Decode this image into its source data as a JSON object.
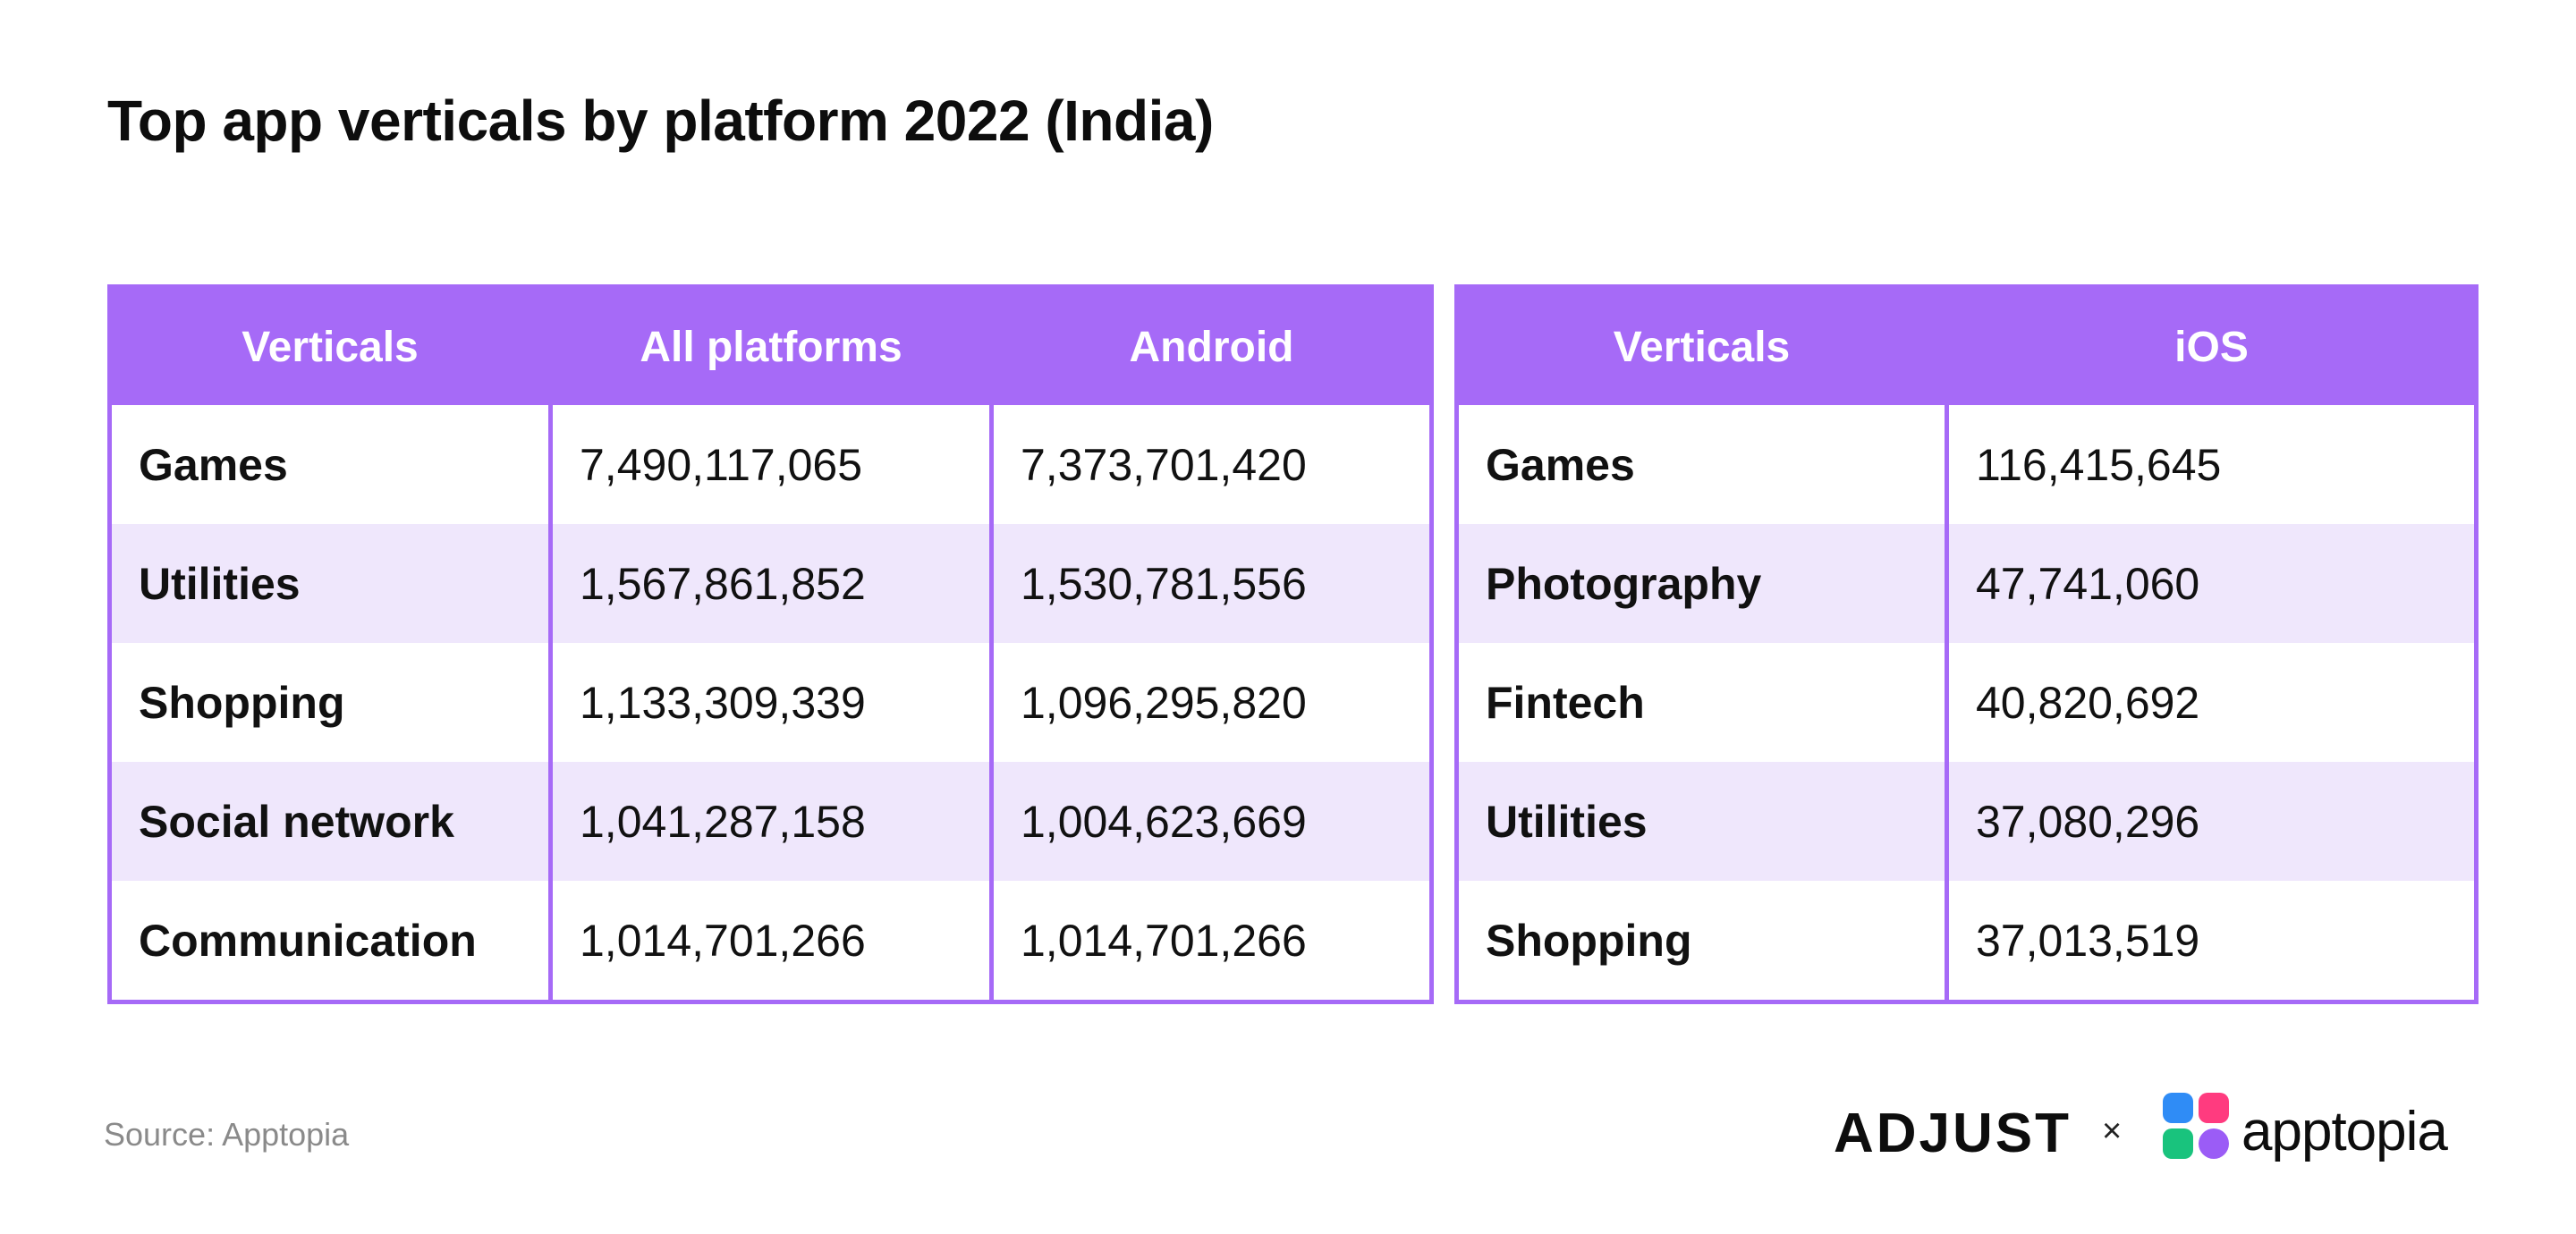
{
  "title": "Top app verticals by platform 2022 (India)",
  "source": "Source: Apptopia",
  "logos": {
    "adjust": "ADJUST",
    "separator": "×",
    "apptopia": "apptopia"
  },
  "colors": {
    "header_bg": "#a66af7",
    "row_alt_bg": "#efe7fc",
    "text": "#111111"
  },
  "chart_data": [
    {
      "type": "table",
      "columns": [
        "Verticals",
        "All platforms",
        "Android"
      ],
      "rows": [
        [
          "Games",
          "7,490,117,065",
          "7,373,701,420"
        ],
        [
          "Utilities",
          "1,567,861,852",
          "1,530,781,556"
        ],
        [
          "Shopping",
          "1,133,309,339",
          "1,096,295,820"
        ],
        [
          "Social network",
          "1,041,287,158",
          "1,004,623,669"
        ],
        [
          "Communication",
          "1,014,701,266",
          "1,014,701,266"
        ]
      ]
    },
    {
      "type": "table",
      "columns": [
        "Verticals",
        "iOS"
      ],
      "rows": [
        [
          "Games",
          "116,415,645"
        ],
        [
          "Photography",
          "47,741,060"
        ],
        [
          "Fintech",
          "40,820,692"
        ],
        [
          "Utilities",
          "37,080,296"
        ],
        [
          "Shopping",
          "37,013,519"
        ]
      ]
    }
  ]
}
